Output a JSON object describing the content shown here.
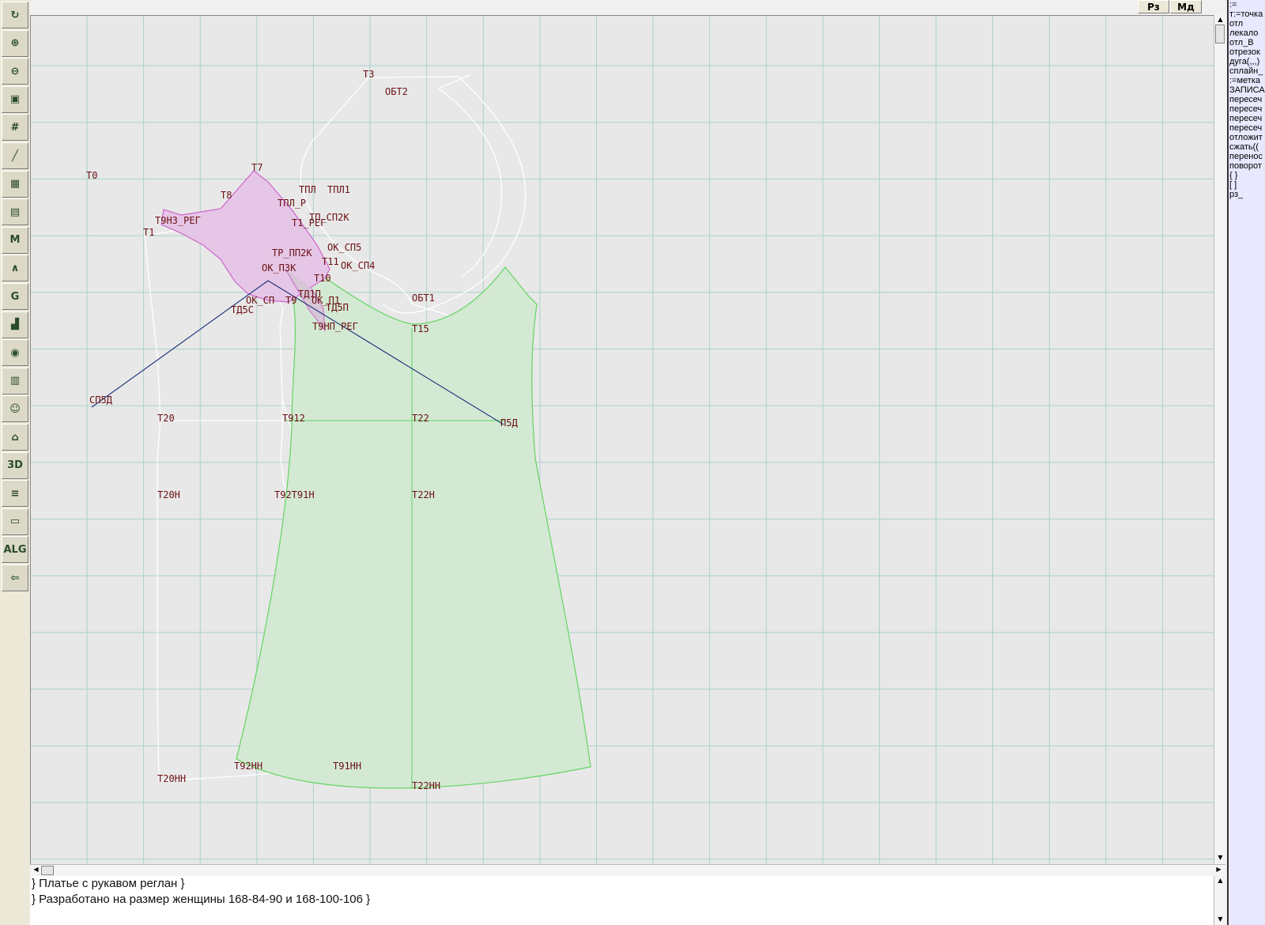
{
  "top_buttons": {
    "rz": "Рз",
    "md": "Мд"
  },
  "toolbar": {
    "tools": [
      {
        "icon": "refresh-icon",
        "glyph": "↻"
      },
      {
        "icon": "zoom-in-icon",
        "glyph": "⊕"
      },
      {
        "icon": "zoom-out-icon",
        "glyph": "⊖"
      },
      {
        "icon": "zoom-fit-icon",
        "glyph": "▣"
      },
      {
        "icon": "grid-icon",
        "glyph": "#"
      },
      {
        "icon": "line-tool-icon",
        "glyph": "╱"
      },
      {
        "icon": "map-icon",
        "glyph": "▦"
      },
      {
        "icon": "pattern-icon",
        "glyph": "▤"
      },
      {
        "icon": "measure-m-icon",
        "glyph": "M"
      },
      {
        "icon": "compass-icon",
        "glyph": "∧"
      },
      {
        "icon": "curve-g-icon",
        "glyph": "G"
      },
      {
        "icon": "ruler-icon",
        "glyph": "▟"
      },
      {
        "icon": "camera-icon",
        "glyph": "◉"
      },
      {
        "icon": "spreadsheet-icon",
        "glyph": "▥"
      },
      {
        "icon": "user-photo-icon",
        "glyph": "☺"
      },
      {
        "icon": "jacket-icon",
        "glyph": "⌂"
      },
      {
        "icon": "view-3d-icon",
        "glyph": "3D"
      },
      {
        "icon": "document-list-icon",
        "glyph": "≡"
      },
      {
        "icon": "books-icon",
        "glyph": "▭"
      },
      {
        "icon": "algorithm-icon",
        "glyph": "ALG"
      },
      {
        "icon": "exit-icon",
        "glyph": "⇦"
      }
    ]
  },
  "commands": [
    ":=",
    "т:=точка",
    "отл",
    "лекало",
    "отл_В",
    "отрезок",
    "дуга(,,,)",
    "сплайн_",
    ":=метка",
    "ЗАПИСА",
    "пересеч",
    "пересеч",
    "пересеч",
    "пересеч",
    "отложит",
    "сжать((",
    "перенос",
    "поворот",
    "{ }",
    "[ ]",
    "рз_"
  ],
  "notes": [
    "} Платье с рукавом реглан }",
    "} Разработано на размер женщины 168-84-90 и 168-100-106 }"
  ],
  "colors": {
    "grid": "#a9d2c8",
    "canvas": "#e8e8e8",
    "front_fill": "#d3e9d3",
    "front_stroke": "#63d463",
    "sleeve_fill": "#e6c6e6",
    "sleeve_stroke": "#cc66cc",
    "construction": "#ffffff",
    "guide_line": "#1a2e7a",
    "label": "#6b0f12",
    "command_panel": "#e8e8ff"
  },
  "points": [
    {
      "name": "Т3"
    },
    {
      "name": "ОБТ2"
    },
    {
      "name": "Т0"
    },
    {
      "name": "Т7"
    },
    {
      "name": "Т8"
    },
    {
      "name": "ТПЛ"
    },
    {
      "name": "ТПЛ1"
    },
    {
      "name": "Т9НЗ_РЕГ"
    },
    {
      "name": "ТПЛ_Р"
    },
    {
      "name": "ТП_СП2К"
    },
    {
      "name": "Т1"
    },
    {
      "name": "Т1_РЕГ"
    },
    {
      "name": "ОК_СП5"
    },
    {
      "name": "ТР_ПП2К"
    },
    {
      "name": "Т11"
    },
    {
      "name": "ОК_СП4"
    },
    {
      "name": "ОК_П3К"
    },
    {
      "name": "Т10"
    },
    {
      "name": "ОК_СП"
    },
    {
      "name": "Т9"
    },
    {
      "name": "ОК_П1"
    },
    {
      "name": "ТД1П"
    },
    {
      "name": "ТД5П"
    },
    {
      "name": "ТД5С"
    },
    {
      "name": "ОБТ1"
    },
    {
      "name": "Т9НП_РЕГ"
    },
    {
      "name": "Т15"
    },
    {
      "name": "СП5Д"
    },
    {
      "name": "Т20"
    },
    {
      "name": "Т912"
    },
    {
      "name": "Т22"
    },
    {
      "name": "П5Д"
    },
    {
      "name": "Т20Н"
    },
    {
      "name": "Т92Т91Н"
    },
    {
      "name": "Т22Н"
    },
    {
      "name": "Т92НН"
    },
    {
      "name": "Т91НН"
    },
    {
      "name": "Т20НН"
    },
    {
      "name": "Т22НН"
    }
  ]
}
